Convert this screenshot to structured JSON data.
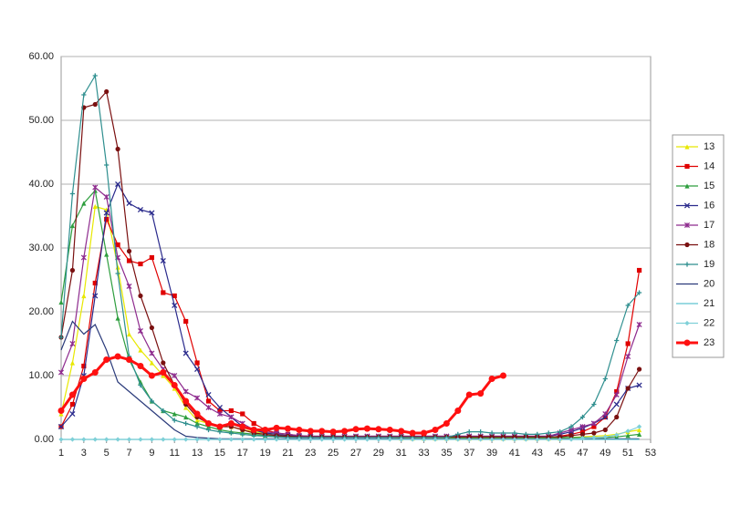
{
  "chart_data": {
    "type": "line",
    "x": [
      1,
      2,
      3,
      4,
      5,
      6,
      7,
      8,
      9,
      10,
      11,
      12,
      13,
      14,
      15,
      16,
      17,
      18,
      19,
      20,
      21,
      22,
      23,
      24,
      25,
      26,
      27,
      28,
      29,
      30,
      31,
      32,
      33,
      34,
      35,
      36,
      37,
      38,
      39,
      40,
      41,
      42,
      43,
      44,
      45,
      46,
      47,
      48,
      49,
      50,
      51,
      52
    ],
    "xlim": [
      1,
      53
    ],
    "xticks": [
      1,
      3,
      5,
      7,
      9,
      11,
      13,
      15,
      17,
      19,
      21,
      23,
      25,
      27,
      29,
      31,
      33,
      35,
      37,
      39,
      41,
      43,
      45,
      47,
      49,
      51,
      53
    ],
    "ylim": [
      0,
      60
    ],
    "yticks": [
      {
        "value": 0,
        "label": "0.00"
      },
      {
        "value": 10,
        "label": "10.00"
      },
      {
        "value": 20,
        "label": "20.00"
      },
      {
        "value": 30,
        "label": "30.00"
      },
      {
        "value": 40,
        "label": "40.00"
      },
      {
        "value": 50,
        "label": "50.00"
      },
      {
        "value": 60,
        "label": "60.00"
      }
    ],
    "grid": true,
    "legend": "right",
    "series": [
      {
        "name": "13",
        "color": "#e8e800",
        "marker": "triangle",
        "values": [
          4,
          12,
          22.5,
          36.5,
          36,
          27,
          16.5,
          14,
          12,
          10,
          8,
          5,
          3,
          2.5,
          2,
          2,
          1.5,
          1.2,
          1,
          0.8,
          0.6,
          0.5,
          0.4,
          0.3,
          0.3,
          0.3,
          0.3,
          0.3,
          0.3,
          0.3,
          0.2,
          0.2,
          0.2,
          0.2,
          0.2,
          0.2,
          0.2,
          0.2,
          0.2,
          0.2,
          0.2,
          0.2,
          0.2,
          0.2,
          0.2,
          0.3,
          0.4,
          0.5,
          0.6,
          0.8,
          1.2,
          1.5
        ]
      },
      {
        "name": "14",
        "color": "#e00000",
        "marker": "square",
        "values": [
          2,
          5.5,
          11.5,
          24.5,
          34.5,
          30.5,
          28,
          27.5,
          28.5,
          23,
          22.5,
          18.5,
          12,
          6,
          4.5,
          4.5,
          4,
          2.5,
          1.5,
          1,
          0.8,
          0.6,
          0.5,
          0.4,
          0.4,
          0.3,
          0.3,
          0.3,
          0.3,
          0.3,
          0.3,
          0.3,
          0.3,
          0.3,
          0.3,
          0.3,
          0.3,
          0.3,
          0.3,
          0.3,
          0.3,
          0.3,
          0.3,
          0.3,
          0.5,
          0.8,
          1.2,
          2,
          3.5,
          7.5,
          15,
          26.5
        ]
      },
      {
        "name": "15",
        "color": "#2e9e3e",
        "marker": "triangle",
        "values": [
          21.5,
          33.5,
          37,
          39,
          29,
          19,
          12.5,
          9,
          6,
          4.5,
          4,
          3.5,
          2.5,
          2,
          1.5,
          1.2,
          1,
          0.8,
          0.6,
          0.5,
          0.4,
          0.4,
          0.3,
          0.3,
          0.3,
          0.3,
          0.3,
          0.3,
          0.3,
          0.3,
          0.3,
          0.3,
          0.3,
          0.3,
          0.3,
          0.3,
          0.3,
          0.3,
          0.3,
          0.3,
          0.3,
          0.3,
          0.3,
          0.3,
          0.3,
          0.3,
          0.3,
          0.3,
          0.3,
          0.4,
          0.6,
          0.8
        ]
      },
      {
        "name": "16",
        "color": "#2a2a8c",
        "marker": "x",
        "values": [
          2,
          4,
          10,
          22.5,
          35.5,
          40,
          37,
          36,
          35.5,
          28,
          21,
          13.5,
          11,
          7,
          5,
          3.5,
          2,
          1.5,
          1,
          0.8,
          0.6,
          0.5,
          0.5,
          0.5,
          0.5,
          0.5,
          0.5,
          0.5,
          0.5,
          0.5,
          0.5,
          0.5,
          0.5,
          0.5,
          0.5,
          0.5,
          0.5,
          0.5,
          0.5,
          0.5,
          0.5,
          0.5,
          0.5,
          0.5,
          0.8,
          1.2,
          1.8,
          2.5,
          3.5,
          5.5,
          8,
          8.5
        ]
      },
      {
        "name": "17",
        "color": "#8e2b8e",
        "marker": "star",
        "values": [
          10.5,
          15,
          28.5,
          39.5,
          38,
          28.5,
          24,
          17,
          13.5,
          11,
          10,
          7.5,
          6.5,
          5,
          4,
          3.5,
          2.5,
          1.5,
          1.2,
          1,
          0.8,
          0.6,
          0.5,
          0.5,
          0.5,
          0.5,
          0.5,
          0.5,
          0.5,
          0.5,
          0.5,
          0.5,
          0.5,
          0.5,
          0.5,
          0.5,
          0.5,
          0.5,
          0.5,
          0.5,
          0.5,
          0.5,
          0.5,
          0.5,
          1,
          1.5,
          2,
          2.5,
          4,
          7,
          13,
          18
        ]
      },
      {
        "name": "18",
        "color": "#7a1010",
        "marker": "circle",
        "values": [
          16,
          26.5,
          52,
          52.5,
          54.5,
          45.5,
          29.5,
          22.5,
          17.5,
          12,
          8.5,
          5.5,
          3.5,
          2.5,
          2,
          2,
          1.5,
          1,
          0.8,
          0.6,
          0.5,
          0.4,
          0.4,
          0.4,
          0.4,
          0.4,
          0.4,
          0.4,
          0.4,
          0.4,
          0.4,
          0.4,
          0.4,
          0.4,
          0.4,
          0.4,
          0.4,
          0.4,
          0.4,
          0.4,
          0.4,
          0.4,
          0.4,
          0.4,
          0.4,
          0.6,
          0.8,
          1,
          1.5,
          3.5,
          8,
          11
        ]
      },
      {
        "name": "19",
        "color": "#2f8f8f",
        "marker": "plus",
        "values": [
          16,
          38.5,
          54,
          57,
          43,
          26,
          13,
          8.5,
          6,
          4.5,
          3,
          2.5,
          2,
          1.5,
          1.2,
          1,
          0.8,
          0.6,
          0.5,
          0.4,
          0.3,
          0.3,
          0.3,
          0.3,
          0.3,
          0.3,
          0.3,
          0.3,
          0.3,
          0.3,
          0.3,
          0.3,
          0.3,
          0.3,
          0.3,
          0.8,
          1.2,
          1.2,
          1,
          1,
          1,
          0.8,
          0.8,
          1,
          1.2,
          2,
          3.5,
          5.5,
          9.5,
          15.5,
          21,
          23
        ]
      },
      {
        "name": "20",
        "color": "#2a3a7a",
        "marker": "none",
        "values": [
          14,
          18.5,
          16.5,
          18,
          14,
          9,
          7.5,
          6,
          4.5,
          3,
          1.5,
          0.5,
          0.3,
          0.2,
          0.1,
          0.1,
          0.1,
          0.1,
          0.1,
          0.1,
          0.1,
          0.1,
          0.1,
          0.1,
          0.1,
          0.1,
          0.1,
          0.1,
          0.1,
          0.1,
          0.1,
          0.1,
          0.1,
          0.1,
          0.1,
          0.1,
          0.1,
          0.1,
          0.1,
          0.1,
          0.1,
          0.1,
          0.1,
          0.1,
          0.1,
          0.1,
          0.1,
          0.1,
          0.1,
          0.1,
          0.1,
          0.1
        ]
      },
      {
        "name": "21",
        "color": "#5fc4d0",
        "marker": "none",
        "values": [
          0,
          0,
          0,
          0,
          0,
          0,
          0,
          0,
          0,
          0,
          0,
          0,
          0,
          0,
          0,
          0,
          0,
          0,
          0,
          0,
          0,
          0,
          0,
          0,
          0,
          0,
          0,
          0,
          0,
          0,
          0,
          0,
          0,
          0,
          0,
          0,
          0,
          0,
          0,
          0,
          0,
          0,
          0,
          0,
          0,
          0,
          0,
          0,
          0,
          0,
          0,
          0
        ]
      },
      {
        "name": "22",
        "color": "#7fd0d8",
        "marker": "diamond",
        "values": [
          0,
          0,
          0,
          0,
          0,
          0,
          0,
          0,
          0,
          0,
          0,
          0,
          0,
          0,
          0,
          0,
          0,
          0,
          0,
          0,
          0,
          0,
          0,
          0,
          0,
          0,
          0,
          0,
          0,
          0,
          0,
          0,
          0,
          0,
          0,
          0,
          0,
          0,
          0,
          0,
          0,
          0,
          0,
          0,
          0,
          0,
          0.2,
          0.3,
          0.4,
          0.7,
          1.3,
          2
        ]
      },
      {
        "name": "23",
        "color": "#ff1010",
        "marker": "circle",
        "width": 3,
        "values": [
          4.5,
          7,
          9.5,
          10.5,
          12.5,
          13,
          12.5,
          11.5,
          10,
          10.5,
          8.5,
          6,
          4,
          2.5,
          2,
          2.5,
          2,
          1.5,
          1.5,
          1.8,
          1.7,
          1.5,
          1.3,
          1.3,
          1.2,
          1.3,
          1.6,
          1.7,
          1.6,
          1.5,
          1.3,
          1,
          1,
          1.5,
          2.5,
          4.5,
          7,
          7.2,
          9.5,
          10,
          null,
          null,
          null,
          null,
          null,
          null,
          null,
          null,
          null,
          null,
          null,
          null
        ]
      }
    ]
  }
}
